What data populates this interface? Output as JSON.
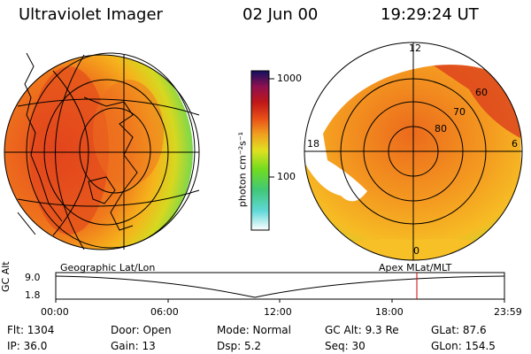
{
  "header": {
    "instrument": "Ultraviolet Imager",
    "date": "02 Jun 00",
    "time": "19:29:24 UT"
  },
  "colorbar": {
    "label": "photon cm⁻²s⁻¹",
    "tick_1000": "1000",
    "tick_100": "100"
  },
  "polar": {
    "mlt_top": "12",
    "mlt_left": "18",
    "mlt_right": "6",
    "mlt_bottom": "0",
    "lat_60": "60",
    "lat_70": "70",
    "lat_80": "80"
  },
  "timeline": {
    "left_title": "Geographic Lat/Lon",
    "right_title": "Apex MLat/MLT",
    "axis_label": "GC Alt",
    "y_top": "9.0",
    "y_bottom": "1.8",
    "x_ticks": [
      "00:00",
      "06:00",
      "12:00",
      "18:00",
      "23:59"
    ],
    "current_marker_color": "#d00000"
  },
  "info": {
    "flt": "Flt:  1304",
    "ip": "IP:  36.0",
    "door": "Door:  Open",
    "gain": "Gain:  13",
    "mode": "Mode:  Normal",
    "dsp": "Dsp:       5.2",
    "gcalt": "GC Alt:  9.3 Re",
    "seq": "Seq:  30",
    "glat": "GLat:   87.6",
    "glon": "GLon:  154.5"
  }
}
